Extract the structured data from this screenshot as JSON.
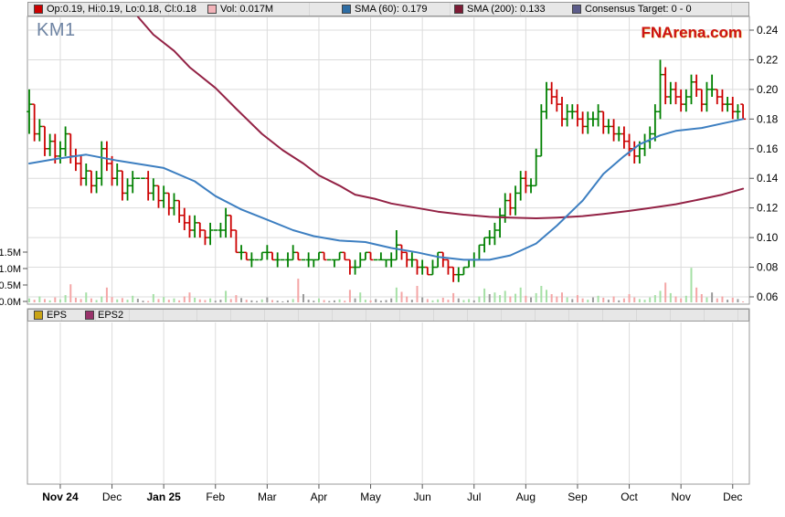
{
  "meta": {
    "title": "KM1",
    "watermark": "FNArena.com"
  },
  "legend_top": {
    "items": [
      {
        "label": "Op:0.19, Hi:0.19, Lo:0.18, Cl:0.18",
        "swatch": "#cc0000"
      },
      {
        "label": "Vol: 0.017M",
        "swatch": "#f2b3b9"
      },
      {
        "label": "SMA (60): 0.179",
        "swatch": "#2e6da4"
      },
      {
        "label": "SMA (200): 0.133",
        "swatch": "#7d1b35"
      },
      {
        "label": "Consensus Target: 0 - 0",
        "swatch": "#5c5c8a"
      }
    ]
  },
  "legend_eps": {
    "items": [
      {
        "label": "EPS",
        "swatch": "#c9a416"
      },
      {
        "label": "EPS2",
        "swatch": "#99336b"
      }
    ]
  },
  "chart_data": {
    "type": "candlestick+volume",
    "title": "KM1",
    "watermark": "FNArena.com",
    "last_quote": {
      "open": 0.19,
      "high": 0.19,
      "low": 0.18,
      "close": 0.18,
      "volume_m": 0.017
    },
    "sma60_last": 0.179,
    "sma200_last": 0.133,
    "consensus_target": "0 - 0",
    "y_axis_price": {
      "ticks": [
        0.24,
        0.22,
        0.2,
        0.18,
        0.16,
        0.14,
        0.12,
        0.1,
        0.08,
        0.06
      ],
      "range": [
        0.055,
        0.249
      ]
    },
    "y_axis_volume": {
      "tick_labels": [
        "1.5M",
        "1.0M",
        "0.5M",
        "0.0M"
      ],
      "tick_values_m": [
        1.5,
        1.0,
        0.5,
        0.0
      ]
    },
    "x_axis": {
      "months": [
        {
          "label": "Nov 24",
          "bold": true
        },
        {
          "label": "Dec",
          "bold": false
        },
        {
          "label": "Jan 25",
          "bold": true
        },
        {
          "label": "Feb",
          "bold": false
        },
        {
          "label": "Mar",
          "bold": false
        },
        {
          "label": "Apr",
          "bold": false
        },
        {
          "label": "May",
          "bold": false
        },
        {
          "label": "Jun",
          "bold": false
        },
        {
          "label": "Jul",
          "bold": false
        },
        {
          "label": "Aug",
          "bold": false
        },
        {
          "label": "Sep",
          "bold": false
        },
        {
          "label": "Oct",
          "bold": false
        },
        {
          "label": "Nov",
          "bold": false
        },
        {
          "label": "Dec",
          "bold": false
        }
      ],
      "month_bar_index": [
        6,
        16,
        26,
        36,
        46,
        56,
        66,
        76,
        86,
        96,
        106,
        116,
        126,
        136
      ]
    },
    "candles_ohlc": [
      [
        0.185,
        0.2,
        0.17,
        0.19
      ],
      [
        0.19,
        0.19,
        0.165,
        0.17
      ],
      [
        0.17,
        0.18,
        0.165,
        0.175
      ],
      [
        0.175,
        0.175,
        0.155,
        0.16
      ],
      [
        0.16,
        0.17,
        0.155,
        0.165
      ],
      [
        0.165,
        0.17,
        0.15,
        0.155
      ],
      [
        0.155,
        0.165,
        0.15,
        0.16
      ],
      [
        0.16,
        0.175,
        0.155,
        0.17
      ],
      [
        0.17,
        0.17,
        0.15,
        0.155
      ],
      [
        0.155,
        0.16,
        0.145,
        0.15
      ],
      [
        0.15,
        0.155,
        0.135,
        0.14
      ],
      [
        0.14,
        0.15,
        0.135,
        0.145
      ],
      [
        0.145,
        0.145,
        0.13,
        0.135
      ],
      [
        0.135,
        0.145,
        0.13,
        0.14
      ],
      [
        0.14,
        0.165,
        0.135,
        0.16
      ],
      [
        0.16,
        0.165,
        0.145,
        0.15
      ],
      [
        0.15,
        0.155,
        0.135,
        0.14
      ],
      [
        0.14,
        0.15,
        0.135,
        0.145
      ],
      [
        0.145,
        0.145,
        0.125,
        0.13
      ],
      [
        0.13,
        0.14,
        0.125,
        0.135
      ],
      [
        0.135,
        0.145,
        0.13,
        0.14
      ],
      [
        0.14,
        0.14,
        0.14,
        0.14
      ],
      [
        0.14,
        0.14,
        0.14,
        0.14
      ],
      [
        0.14,
        0.145,
        0.125,
        0.13
      ],
      [
        0.13,
        0.14,
        0.125,
        0.135
      ],
      [
        0.135,
        0.135,
        0.12,
        0.125
      ],
      [
        0.125,
        0.135,
        0.12,
        0.13
      ],
      [
        0.13,
        0.13,
        0.115,
        0.12
      ],
      [
        0.12,
        0.13,
        0.115,
        0.125
      ],
      [
        0.125,
        0.125,
        0.11,
        0.115
      ],
      [
        0.115,
        0.12,
        0.105,
        0.11
      ],
      [
        0.11,
        0.115,
        0.1,
        0.105
      ],
      [
        0.105,
        0.115,
        0.1,
        0.11
      ],
      [
        0.11,
        0.11,
        0.1,
        0.105
      ],
      [
        0.105,
        0.105,
        0.095,
        0.1
      ],
      [
        0.1,
        0.11,
        0.095,
        0.105
      ],
      [
        0.105,
        0.105,
        0.105,
        0.105
      ],
      [
        0.105,
        0.11,
        0.1,
        0.105
      ],
      [
        0.105,
        0.12,
        0.1,
        0.115
      ],
      [
        0.115,
        0.115,
        0.1,
        0.105
      ],
      [
        0.105,
        0.105,
        0.09,
        0.09
      ],
      [
        0.09,
        0.095,
        0.085,
        0.09
      ],
      [
        0.09,
        0.09,
        0.085,
        0.085
      ],
      [
        0.085,
        0.09,
        0.08,
        0.085
      ],
      [
        0.085,
        0.085,
        0.085,
        0.085
      ],
      [
        0.085,
        0.09,
        0.085,
        0.09
      ],
      [
        0.09,
        0.095,
        0.085,
        0.09
      ],
      [
        0.09,
        0.09,
        0.085,
        0.085
      ],
      [
        0.085,
        0.09,
        0.08,
        0.085
      ],
      [
        0.085,
        0.085,
        0.085,
        0.085
      ],
      [
        0.085,
        0.09,
        0.08,
        0.085
      ],
      [
        0.085,
        0.095,
        0.085,
        0.09
      ],
      [
        0.09,
        0.09,
        0.085,
        0.085
      ],
      [
        0.085,
        0.085,
        0.085,
        0.085
      ],
      [
        0.085,
        0.09,
        0.08,
        0.085
      ],
      [
        0.085,
        0.085,
        0.08,
        0.085
      ],
      [
        0.085,
        0.09,
        0.085,
        0.09
      ],
      [
        0.09,
        0.09,
        0.085,
        0.085
      ],
      [
        0.085,
        0.085,
        0.085,
        0.085
      ],
      [
        0.085,
        0.085,
        0.08,
        0.085
      ],
      [
        0.085,
        0.09,
        0.085,
        0.09
      ],
      [
        0.09,
        0.09,
        0.085,
        0.085
      ],
      [
        0.085,
        0.085,
        0.075,
        0.08
      ],
      [
        0.08,
        0.085,
        0.075,
        0.08
      ],
      [
        0.08,
        0.09,
        0.08,
        0.085
      ],
      [
        0.085,
        0.09,
        0.085,
        0.09
      ],
      [
        0.09,
        0.09,
        0.085,
        0.085
      ],
      [
        0.085,
        0.085,
        0.085,
        0.085
      ],
      [
        0.085,
        0.09,
        0.085,
        0.085
      ],
      [
        0.085,
        0.085,
        0.08,
        0.085
      ],
      [
        0.085,
        0.09,
        0.08,
        0.085
      ],
      [
        0.085,
        0.105,
        0.085,
        0.095
      ],
      [
        0.095,
        0.095,
        0.085,
        0.09
      ],
      [
        0.09,
        0.09,
        0.08,
        0.085
      ],
      [
        0.085,
        0.09,
        0.08,
        0.085
      ],
      [
        0.085,
        0.085,
        0.075,
        0.08
      ],
      [
        0.08,
        0.085,
        0.075,
        0.08
      ],
      [
        0.08,
        0.08,
        0.075,
        0.075
      ],
      [
        0.075,
        0.085,
        0.075,
        0.08
      ],
      [
        0.08,
        0.09,
        0.08,
        0.09
      ],
      [
        0.09,
        0.09,
        0.08,
        0.085
      ],
      [
        0.085,
        0.085,
        0.075,
        0.08
      ],
      [
        0.08,
        0.08,
        0.07,
        0.075
      ],
      [
        0.075,
        0.08,
        0.07,
        0.075
      ],
      [
        0.075,
        0.08,
        0.075,
        0.08
      ],
      [
        0.08,
        0.085,
        0.08,
        0.085
      ],
      [
        0.085,
        0.09,
        0.08,
        0.085
      ],
      [
        0.085,
        0.095,
        0.085,
        0.095
      ],
      [
        0.095,
        0.1,
        0.09,
        0.1
      ],
      [
        0.1,
        0.105,
        0.095,
        0.1
      ],
      [
        0.1,
        0.11,
        0.095,
        0.105
      ],
      [
        0.105,
        0.12,
        0.1,
        0.115
      ],
      [
        0.115,
        0.13,
        0.11,
        0.125
      ],
      [
        0.125,
        0.13,
        0.115,
        0.12
      ],
      [
        0.12,
        0.135,
        0.115,
        0.13
      ],
      [
        0.13,
        0.145,
        0.125,
        0.14
      ],
      [
        0.14,
        0.145,
        0.13,
        0.135
      ],
      [
        0.135,
        0.14,
        0.13,
        0.135
      ],
      [
        0.135,
        0.16,
        0.135,
        0.155
      ],
      [
        0.155,
        0.19,
        0.155,
        0.185
      ],
      [
        0.185,
        0.205,
        0.18,
        0.2
      ],
      [
        0.2,
        0.205,
        0.19,
        0.195
      ],
      [
        0.195,
        0.2,
        0.185,
        0.19
      ],
      [
        0.19,
        0.195,
        0.175,
        0.18
      ],
      [
        0.18,
        0.19,
        0.175,
        0.185
      ],
      [
        0.185,
        0.19,
        0.18,
        0.185
      ],
      [
        0.185,
        0.19,
        0.175,
        0.18
      ],
      [
        0.18,
        0.185,
        0.17,
        0.175
      ],
      [
        0.175,
        0.185,
        0.17,
        0.18
      ],
      [
        0.18,
        0.185,
        0.175,
        0.18
      ],
      [
        0.18,
        0.19,
        0.175,
        0.185
      ],
      [
        0.185,
        0.185,
        0.17,
        0.175
      ],
      [
        0.175,
        0.18,
        0.17,
        0.175
      ],
      [
        0.175,
        0.18,
        0.165,
        0.17
      ],
      [
        0.17,
        0.175,
        0.165,
        0.17
      ],
      [
        0.17,
        0.175,
        0.16,
        0.165
      ],
      [
        0.165,
        0.17,
        0.155,
        0.16
      ],
      [
        0.16,
        0.165,
        0.15,
        0.155
      ],
      [
        0.155,
        0.165,
        0.15,
        0.16
      ],
      [
        0.16,
        0.17,
        0.155,
        0.165
      ],
      [
        0.165,
        0.175,
        0.16,
        0.17
      ],
      [
        0.17,
        0.19,
        0.165,
        0.185
      ],
      [
        0.185,
        0.22,
        0.18,
        0.21
      ],
      [
        0.21,
        0.215,
        0.19,
        0.195
      ],
      [
        0.195,
        0.205,
        0.19,
        0.2
      ],
      [
        0.2,
        0.205,
        0.19,
        0.195
      ],
      [
        0.195,
        0.2,
        0.185,
        0.19
      ],
      [
        0.19,
        0.2,
        0.185,
        0.195
      ],
      [
        0.195,
        0.21,
        0.19,
        0.205
      ],
      [
        0.205,
        0.21,
        0.195,
        0.2
      ],
      [
        0.2,
        0.2,
        0.185,
        0.19
      ],
      [
        0.19,
        0.205,
        0.185,
        0.2
      ],
      [
        0.2,
        0.21,
        0.195,
        0.2
      ],
      [
        0.2,
        0.2,
        0.19,
        0.195
      ],
      [
        0.195,
        0.2,
        0.185,
        0.19
      ],
      [
        0.19,
        0.195,
        0.185,
        0.19
      ],
      [
        0.19,
        0.195,
        0.18,
        0.185
      ],
      [
        0.185,
        0.19,
        0.18,
        0.185
      ],
      [
        0.19,
        0.19,
        0.18,
        0.18
      ]
    ],
    "volumes_m": [
      0.12,
      0.08,
      0.18,
      0.1,
      0.06,
      0.15,
      0.09,
      0.22,
      0.55,
      0.14,
      0.1,
      0.3,
      0.12,
      0.07,
      0.18,
      0.45,
      0.16,
      0.09,
      0.13,
      0.08,
      0.2,
      0.11,
      0.05,
      0.04,
      0.25,
      0.1,
      0.16,
      0.08,
      0.12,
      0.06,
      0.18,
      0.3,
      0.14,
      0.09,
      0.07,
      0.12,
      0.05,
      0.08,
      0.35,
      0.1,
      0.22,
      0.13,
      0.08,
      0.06,
      0.04,
      0.09,
      0.15,
      0.07,
      0.05,
      0.03,
      0.06,
      0.1,
      0.72,
      0.25,
      0.08,
      0.05,
      0.12,
      0.07,
      0.04,
      0.06,
      0.09,
      0.05,
      0.38,
      0.12,
      0.3,
      0.08,
      0.06,
      0.1,
      0.05,
      0.07,
      0.12,
      0.45,
      0.32,
      0.18,
      0.08,
      0.5,
      0.15,
      0.1,
      0.06,
      0.09,
      0.14,
      0.08,
      0.28,
      0.12,
      0.07,
      0.1,
      0.06,
      0.18,
      0.42,
      0.25,
      0.3,
      0.22,
      0.35,
      0.18,
      0.26,
      0.45,
      0.2,
      0.15,
      0.28,
      0.5,
      0.38,
      0.25,
      0.18,
      0.3,
      0.15,
      0.1,
      0.22,
      0.12,
      0.08,
      0.15,
      0.2,
      0.14,
      0.08,
      0.18,
      0.06,
      0.12,
      0.25,
      0.15,
      0.1,
      0.08,
      0.15,
      0.22,
      0.35,
      0.6,
      0.28,
      0.18,
      0.12,
      0.2,
      1.05,
      0.45,
      0.25,
      0.15,
      0.3,
      0.12,
      0.18,
      0.08,
      0.14,
      0.1,
      0.017
    ],
    "sma60_points": [
      [
        0,
        0.15
      ],
      [
        5,
        0.153
      ],
      [
        11,
        0.156
      ],
      [
        17,
        0.152
      ],
      [
        26,
        0.147
      ],
      [
        32,
        0.138
      ],
      [
        36,
        0.128
      ],
      [
        41,
        0.119
      ],
      [
        46,
        0.112
      ],
      [
        51,
        0.105
      ],
      [
        55,
        0.101
      ],
      [
        60,
        0.098
      ],
      [
        65,
        0.097
      ],
      [
        70,
        0.093
      ],
      [
        75,
        0.09
      ],
      [
        79,
        0.087
      ],
      [
        84,
        0.085
      ],
      [
        89,
        0.085
      ],
      [
        93,
        0.088
      ],
      [
        98,
        0.096
      ],
      [
        102,
        0.108
      ],
      [
        107,
        0.125
      ],
      [
        111,
        0.143
      ],
      [
        115,
        0.155
      ],
      [
        118,
        0.163
      ],
      [
        122,
        0.169
      ],
      [
        125,
        0.172
      ],
      [
        130,
        0.174
      ],
      [
        134,
        0.177
      ],
      [
        138,
        0.18
      ]
    ],
    "sma200_points": [
      [
        21,
        0.249
      ],
      [
        24,
        0.237
      ],
      [
        28,
        0.226
      ],
      [
        31,
        0.215
      ],
      [
        36,
        0.201
      ],
      [
        40,
        0.187
      ],
      [
        45,
        0.17
      ],
      [
        49,
        0.159
      ],
      [
        53,
        0.15
      ],
      [
        56,
        0.142
      ],
      [
        60,
        0.135
      ],
      [
        63,
        0.129
      ],
      [
        67,
        0.126
      ],
      [
        70,
        0.123
      ],
      [
        75,
        0.12
      ],
      [
        79,
        0.1175
      ],
      [
        84,
        0.1155
      ],
      [
        89,
        0.114
      ],
      [
        93,
        0.1135
      ],
      [
        98,
        0.113
      ],
      [
        102,
        0.1135
      ],
      [
        107,
        0.1145
      ],
      [
        111,
        0.116
      ],
      [
        116,
        0.118
      ],
      [
        120,
        0.12
      ],
      [
        125,
        0.1225
      ],
      [
        130,
        0.126
      ],
      [
        134,
        0.129
      ],
      [
        138,
        0.133
      ]
    ],
    "colors": {
      "up": "#008000",
      "down": "#cc0000",
      "sma60": "#3d7fc1",
      "sma200": "#932245",
      "vol_up": "#a6e0a6",
      "vol_down": "#f4a6a6",
      "vol_flat": "#9a9a9a",
      "grid": "#dcdcdc",
      "axis": "#555555",
      "panel_border": "#999999",
      "eps": "#c9a416",
      "eps2": "#99336b"
    },
    "legend_position": "top",
    "grid": true
  }
}
